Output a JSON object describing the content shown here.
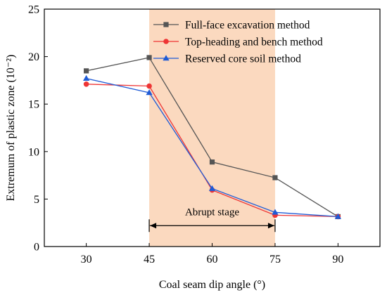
{
  "chart_data": {
    "type": "line",
    "x": [
      30,
      45,
      60,
      75,
      90
    ],
    "series": [
      {
        "name": "Full-face excavation method",
        "values": [
          18.5,
          19.9,
          8.9,
          7.25,
          3.15
        ],
        "color": "#555555",
        "marker": "square"
      },
      {
        "name": "Top-heading and bench method",
        "values": [
          17.1,
          16.9,
          5.95,
          3.3,
          3.15
        ],
        "color": "#ee3535",
        "marker": "circle"
      },
      {
        "name": "Reserved core soil method",
        "values": [
          17.7,
          16.2,
          6.1,
          3.6,
          3.15
        ],
        "color": "#1f5bd6",
        "marker": "triangle"
      }
    ],
    "xlabel": "Coal seam dip angle (°)",
    "ylabel": "Extremum of plastic zone (10⁻²)",
    "xlim": [
      20,
      100
    ],
    "ylim": [
      0,
      25
    ],
    "xticks": [
      30,
      45,
      60,
      75,
      90
    ],
    "yticks": [
      0,
      5,
      10,
      15,
      20,
      25
    ],
    "grid": false,
    "legend_position": "top-right",
    "shaded_region": {
      "x_range": [
        45,
        75
      ],
      "color": "#fbd9bf"
    },
    "annotation": {
      "text": "Abrupt stage",
      "x_range": [
        45,
        75
      ],
      "y": 2.2
    }
  }
}
